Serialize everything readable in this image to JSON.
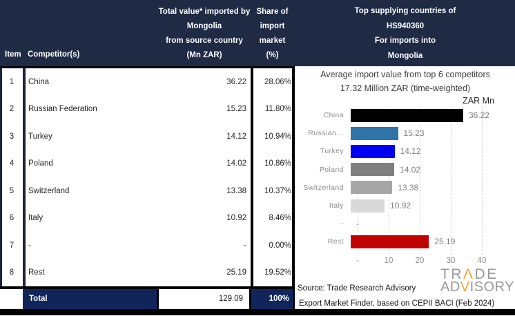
{
  "table": {
    "header": {
      "item": "Item",
      "competitor": "Competitor(s)",
      "value_lines": [
        "Total value* imported by",
        "Mongolia",
        "from source country",
        "(Mn ZAR)"
      ],
      "share_lines": [
        "Share of",
        "import",
        "market (%)"
      ]
    },
    "rows": [
      {
        "item": "1",
        "competitor": "China",
        "value": "36.22",
        "share": "28.06%"
      },
      {
        "item": "2",
        "competitor": "Russian Federation",
        "value": "15.23",
        "share": "11.80%"
      },
      {
        "item": "3",
        "competitor": "Turkey",
        "value": "14.12",
        "share": "10.94%"
      },
      {
        "item": "4",
        "competitor": "Poland",
        "value": "14.02",
        "share": "10.86%"
      },
      {
        "item": "5",
        "competitor": "Switzerland",
        "value": "13.38",
        "share": "10.37%"
      },
      {
        "item": "6",
        "competitor": "Italy",
        "value": "10.92",
        "share": "8.46%"
      },
      {
        "item": "7",
        "competitor": "-",
        "value": "-",
        "share": "0.00%"
      },
      {
        "item": "8",
        "competitor": "Rest",
        "value": "25.19",
        "share": "19.52%"
      }
    ],
    "total": {
      "label": "Total",
      "value": "129.09",
      "share": "100%"
    }
  },
  "panel_header_lines": [
    "Top supplying countries of",
    "HS940360",
    "For imports into",
    "Mongolia"
  ],
  "chart_data": {
    "type": "bar",
    "orientation": "horizontal",
    "title": "Average import value from top 6 competitors",
    "subtitle": "17.32 Million ZAR (time-weighted)",
    "axis_unit_label": "ZAR Mn",
    "categories": [
      "China",
      "Russian…",
      "Turkey",
      "Poland",
      "Switzerland",
      "Italy",
      "-",
      "Rest"
    ],
    "values": [
      36.22,
      15.23,
      14.12,
      14.02,
      13.38,
      10.92,
      null,
      25.19
    ],
    "value_labels": [
      "36.22",
      "15.23",
      "14.12",
      "14.02",
      "13.38",
      "10.92",
      "-",
      "25.19"
    ],
    "bar_colors": [
      "#000000",
      "#2E74A8",
      "#0000F0",
      "#7F7F7F",
      "#A6A6A6",
      "#D9D9D9",
      null,
      "#C00000"
    ],
    "xlim": [
      0,
      40
    ],
    "x_ticks": [
      "-",
      "10",
      "20",
      "30",
      "40"
    ],
    "x_tick_values": [
      0,
      10,
      20,
      30,
      40
    ],
    "grid": "dashed-vertical",
    "legend": false
  },
  "footer": {
    "source_line1": "Source: Trade Research Advisory",
    "source_line2": "Export Market Finder, based on CEPII BACI (Feb 2024)"
  },
  "logo": {
    "trade_pre": "TR",
    "trade_caret": "Λ",
    "trade_post": "DE",
    "adv_pre": "AD",
    "adv_v": "V",
    "adv_post": "ISORY"
  },
  "colors": {
    "header_navy": "#1F2A45",
    "total_navy": "#10265B",
    "border_black": "#000000",
    "logo_gray": "#97999B",
    "accent_orange": "#F2A333"
  }
}
